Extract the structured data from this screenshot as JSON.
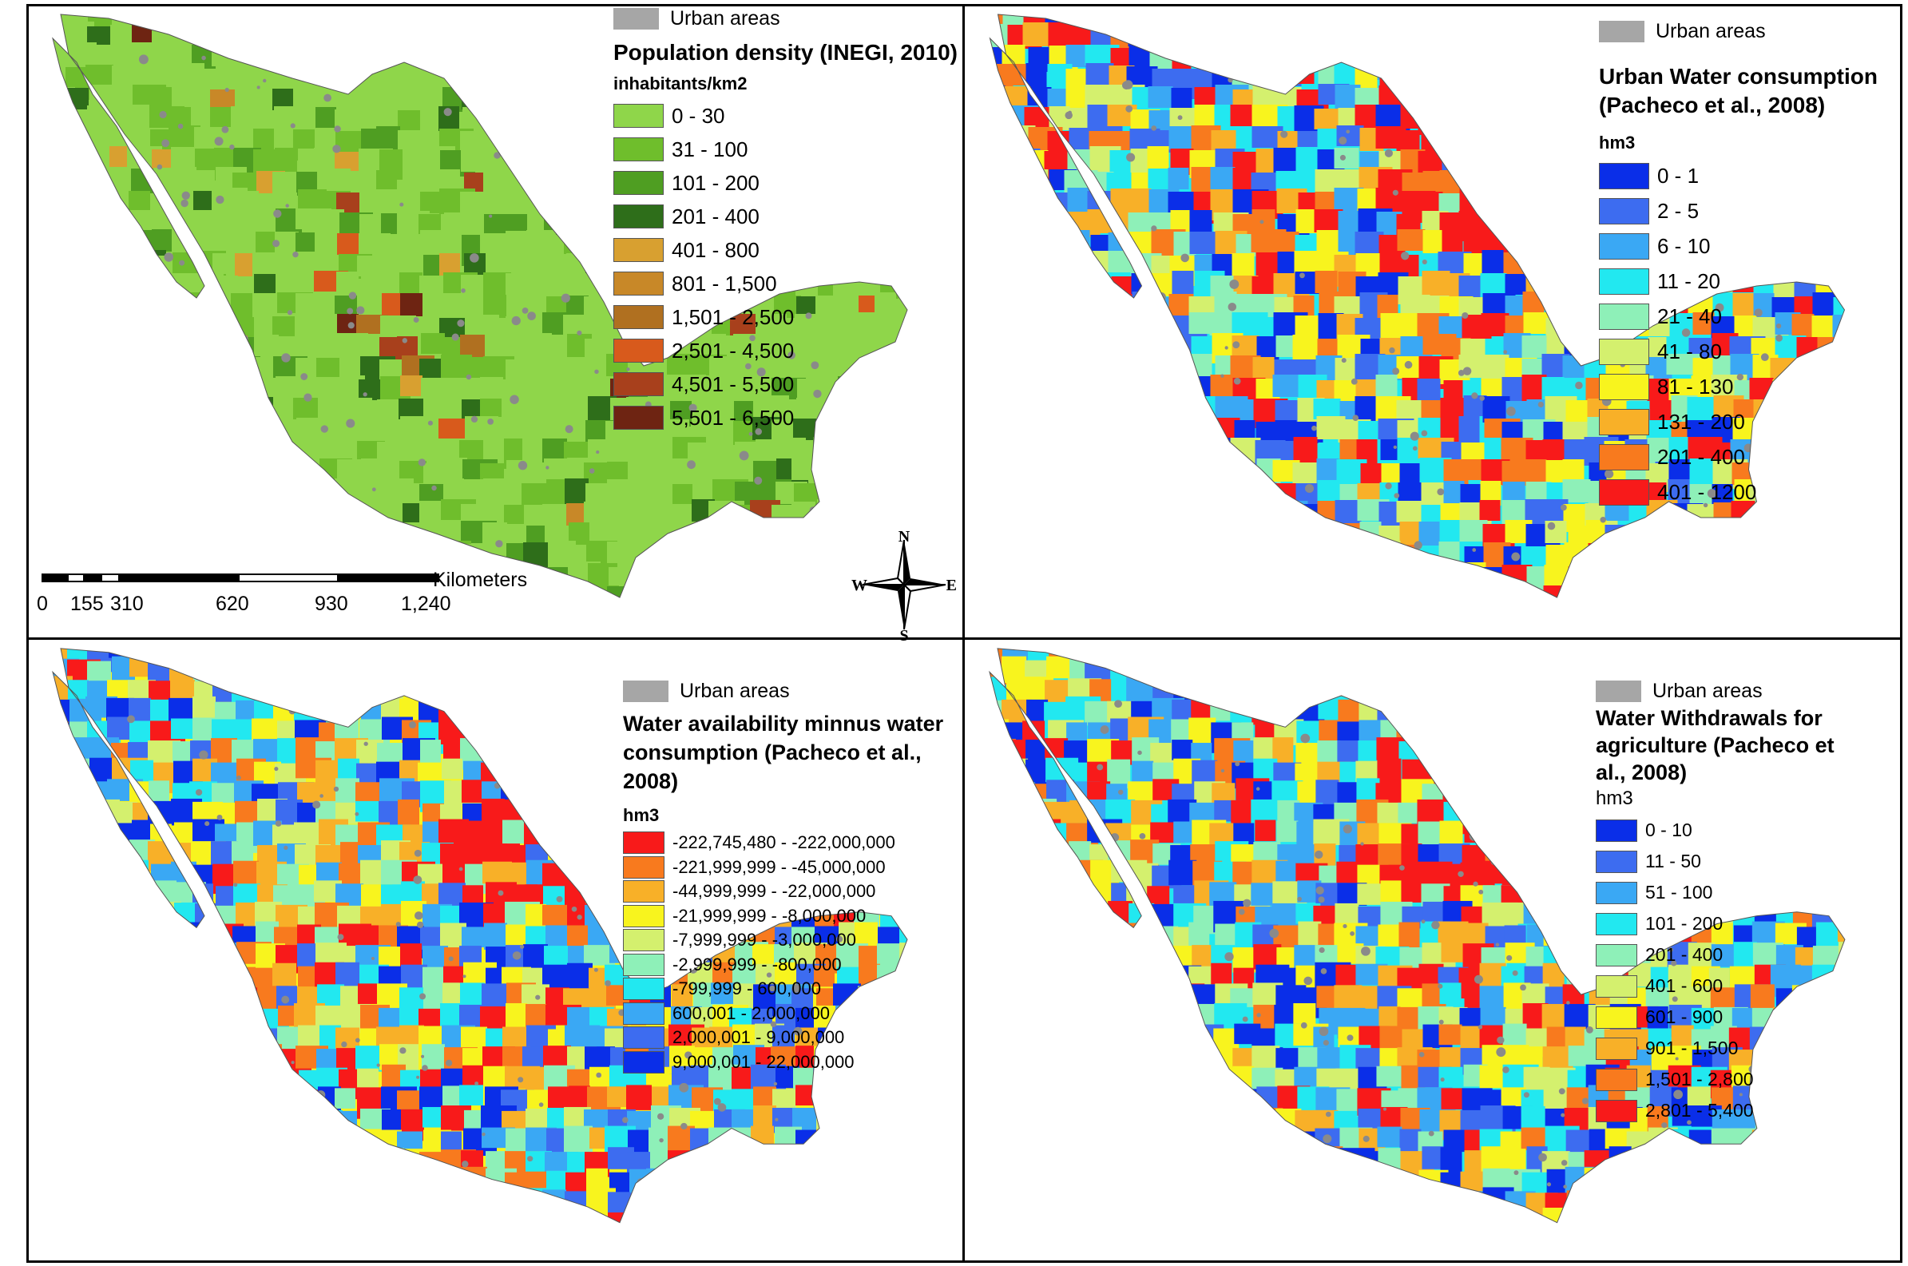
{
  "panels": [
    {
      "urban_label": "Urban areas",
      "title": "Population density (INEGI, 2010)",
      "unit": "inhabitants/km2",
      "classes": [
        {
          "label": "0 - 30",
          "color": "#8fd64a"
        },
        {
          "label": "31 - 100",
          "color": "#6fbe2c"
        },
        {
          "label": "101 - 200",
          "color": "#4f9e22"
        },
        {
          "label": "201 - 400",
          "color": "#2e6e1a"
        },
        {
          "label": "401 - 800",
          "color": "#d8a030"
        },
        {
          "label": "801 - 1,500",
          "color": "#c88828"
        },
        {
          "label": "1,501 - 2,500",
          "color": "#b07020"
        },
        {
          "label": "2,501 - 4,500",
          "color": "#d85a1c"
        },
        {
          "label": "4,501 - 5,500",
          "color": "#a8401c"
        },
        {
          "label": "5,501 - 6,500",
          "color": "#6e2412"
        }
      ]
    },
    {
      "urban_label": "Urban areas",
      "title": "Urban Water consumption\n(Pacheco et al., 2008)",
      "unit": "hm3",
      "classes": [
        {
          "label": "0 - 1",
          "color": "#0a2ee8"
        },
        {
          "label": "2 - 5",
          "color": "#3d6cf0"
        },
        {
          "label": "6 - 10",
          "color": "#3aa8f4"
        },
        {
          "label": "11 - 20",
          "color": "#22e8f0"
        },
        {
          "label": "21 - 40",
          "color": "#8ef0b8"
        },
        {
          "label": "41 - 80",
          "color": "#d4f06e"
        },
        {
          "label": "81 - 130",
          "color": "#f8f41e"
        },
        {
          "label": "131 - 200",
          "color": "#f8b028"
        },
        {
          "label": "201 - 400",
          "color": "#f87a1e"
        },
        {
          "label": "401 - 1200",
          "color": "#f81a1a"
        }
      ]
    },
    {
      "urban_label": "Urban areas",
      "title": "Water availability minnus water\nconsumption (Pacheco et al.,\n2008)",
      "unit": "hm3",
      "classes": [
        {
          "label": "-222,745,480 - -222,000,000",
          "color": "#f81a1a"
        },
        {
          "label": "-221,999,999 - -45,000,000",
          "color": "#f87a1e"
        },
        {
          "label": "-44,999,999 - -22,000,000",
          "color": "#f8b028"
        },
        {
          "label": "-21,999,999 - -8,000,000",
          "color": "#f8f41e"
        },
        {
          "label": "-7,999,999 - -3,000,000",
          "color": "#d4f06e"
        },
        {
          "label": "-2,999,999 - -800,000",
          "color": "#8ef0b8"
        },
        {
          "label": "-799,999 - 600,000",
          "color": "#22e8f0"
        },
        {
          "label": "600,001 - 2,000,000",
          "color": "#3aa8f4"
        },
        {
          "label": "2,000,001 - 9,000,000",
          "color": "#3d6cf0"
        },
        {
          "label": "9,000,001 - 22,000,000",
          "color": "#0a2ee8"
        }
      ]
    },
    {
      "urban_label": "Urban areas",
      "title": "Water Withdrawals for\nagriculture (Pacheco et\nal., 2008)",
      "unit": "hm3",
      "classes": [
        {
          "label": "0 - 10",
          "color": "#0a2ee8"
        },
        {
          "label": "11 - 50",
          "color": "#3d6cf0"
        },
        {
          "label": "51 - 100",
          "color": "#3aa8f4"
        },
        {
          "label": "101 - 200",
          "color": "#22e8f0"
        },
        {
          "label": "201 - 400",
          "color": "#8ef0b8"
        },
        {
          "label": "401 - 600",
          "color": "#d4f06e"
        },
        {
          "label": "601 - 900",
          "color": "#f8f41e"
        },
        {
          "label": "901 - 1,500",
          "color": "#f8b028"
        },
        {
          "label": "1,501 - 2,800",
          "color": "#f87a1e"
        },
        {
          "label": "2,801 - 5,400",
          "color": "#f81a1a"
        }
      ]
    }
  ],
  "scalebar": {
    "unit": "Kilometers",
    "ticks": [
      "0",
      "155",
      "310",
      "620",
      "930",
      "1,240"
    ]
  },
  "compass": {
    "n": "N",
    "s": "S",
    "e": "E",
    "w": "W"
  }
}
